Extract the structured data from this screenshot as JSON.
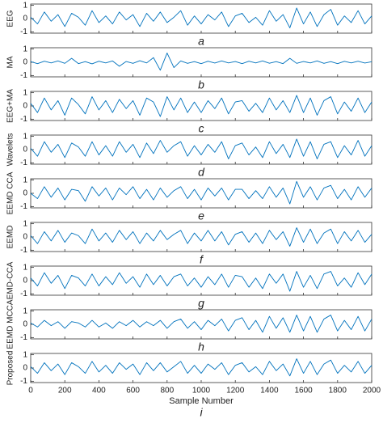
{
  "chart_data": {
    "type": "line",
    "xlabel": "Sample Number",
    "xlim": [
      0,
      2000
    ],
    "xticks": [
      0,
      200,
      400,
      600,
      800,
      1000,
      1200,
      1400,
      1600,
      1800,
      2000
    ],
    "ylim": [
      -1.1,
      1.1
    ],
    "yticks": [
      -1,
      0,
      1
    ],
    "color": "#0072bd",
    "x": [
      0,
      40,
      80,
      120,
      160,
      200,
      240,
      280,
      320,
      360,
      400,
      440,
      480,
      520,
      560,
      600,
      640,
      680,
      720,
      760,
      800,
      840,
      880,
      920,
      960,
      1000,
      1040,
      1080,
      1120,
      1160,
      1200,
      1240,
      1280,
      1320,
      1360,
      1400,
      1440,
      1480,
      1520,
      1560,
      1600,
      1640,
      1680,
      1720,
      1760,
      1800,
      1840,
      1880,
      1920,
      1960,
      2000
    ],
    "series": [
      {
        "name": "EEG",
        "label": "a",
        "values": [
          0.1,
          -0.4,
          0.5,
          -0.2,
          0.3,
          -0.6,
          0.4,
          0.1,
          -0.5,
          0.6,
          -0.3,
          0.2,
          -0.4,
          0.5,
          -0.1,
          0.3,
          -0.6,
          0.4,
          -0.2,
          0.5,
          -0.3,
          0.1,
          0.6,
          -0.5,
          0.2,
          -0.4,
          0.3,
          -0.1,
          0.5,
          -0.6,
          0.2,
          0.4,
          -0.3,
          0.1,
          -0.5,
          0.6,
          -0.2,
          0.3,
          -0.7,
          0.8,
          -0.4,
          0.5,
          -0.6,
          0.3,
          0.7,
          -0.5,
          0.2,
          -0.3,
          0.6,
          -0.4,
          0.2
        ]
      },
      {
        "name": "MA",
        "label": "b",
        "values": [
          0.05,
          -0.1,
          0.08,
          -0.05,
          0.1,
          -0.08,
          0.3,
          -0.1,
          0.05,
          -0.12,
          0.08,
          -0.05,
          0.1,
          -0.3,
          0.06,
          -0.08,
          0.12,
          -0.05,
          0.35,
          -0.6,
          0.7,
          -0.4,
          0.1,
          -0.08,
          0.05,
          -0.1,
          0.08,
          -0.06,
          0.1,
          -0.05,
          0.06,
          -0.1,
          0.08,
          -0.05,
          0.1,
          -0.07,
          0.05,
          -0.1,
          0.3,
          -0.08,
          0.06,
          -0.05,
          0.1,
          -0.08,
          0.05,
          -0.1,
          0.07,
          -0.05,
          0.08,
          -0.06,
          0.04
        ]
      },
      {
        "name": "EEG+MA",
        "label": "c",
        "values": [
          0.2,
          -0.5,
          0.6,
          -0.3,
          0.4,
          -0.7,
          0.6,
          0.1,
          -0.6,
          0.7,
          -0.3,
          0.4,
          -0.5,
          0.5,
          -0.2,
          0.4,
          -0.7,
          0.6,
          0.3,
          -0.8,
          0.7,
          -0.3,
          0.6,
          -0.5,
          0.3,
          -0.5,
          0.4,
          -0.2,
          0.6,
          -0.6,
          0.3,
          0.4,
          -0.4,
          0.2,
          -0.5,
          0.6,
          -0.3,
          0.4,
          -0.5,
          0.8,
          -0.5,
          0.6,
          -0.7,
          0.4,
          0.7,
          -0.6,
          0.3,
          -0.4,
          0.6,
          -0.5,
          0.3
        ]
      },
      {
        "name": "Wavelets",
        "label": "d",
        "values": [
          0.1,
          -0.5,
          0.6,
          -0.2,
          0.4,
          -0.6,
          0.5,
          0.2,
          -0.5,
          0.6,
          -0.4,
          0.3,
          -0.5,
          0.6,
          -0.2,
          0.4,
          -0.6,
          0.5,
          -0.3,
          0.7,
          -0.2,
          0.3,
          0.6,
          -0.5,
          0.3,
          -0.4,
          0.4,
          -0.2,
          0.6,
          -0.7,
          0.3,
          0.5,
          -0.4,
          0.2,
          -0.6,
          0.6,
          -0.3,
          0.4,
          -0.6,
          0.8,
          -0.5,
          0.6,
          -0.7,
          0.4,
          0.6,
          -0.6,
          0.3,
          -0.4,
          0.7,
          -0.5,
          0.3
        ]
      },
      {
        "name": "EEMD CCA",
        "label": "e",
        "values": [
          0.0,
          -0.4,
          0.5,
          -0.3,
          0.4,
          -0.5,
          0.3,
          0.2,
          -0.6,
          0.5,
          -0.2,
          0.4,
          -0.5,
          0.4,
          -0.1,
          0.5,
          -0.4,
          0.3,
          -0.5,
          0.4,
          -0.3,
          0.2,
          0.5,
          -0.4,
          0.3,
          -0.5,
          0.4,
          -0.2,
          0.4,
          -0.5,
          0.3,
          0.3,
          -0.4,
          0.2,
          -0.4,
          0.5,
          -0.3,
          0.4,
          -0.8,
          0.9,
          -0.3,
          0.5,
          -0.5,
          0.4,
          0.6,
          -0.4,
          0.3,
          -0.5,
          0.5,
          -0.3,
          0.4
        ]
      },
      {
        "name": "EEMD",
        "label": "f",
        "values": [
          0.1,
          -0.5,
          0.4,
          -0.3,
          0.5,
          -0.4,
          0.3,
          0.1,
          -0.5,
          0.6,
          -0.3,
          0.3,
          -0.4,
          0.5,
          -0.2,
          0.4,
          -0.5,
          0.3,
          -0.3,
          0.5,
          -0.2,
          0.2,
          0.5,
          -0.5,
          0.3,
          -0.3,
          0.5,
          -0.3,
          0.4,
          -0.6,
          0.2,
          0.4,
          -0.4,
          0.3,
          -0.5,
          0.5,
          -0.2,
          0.4,
          -0.7,
          0.7,
          -0.4,
          0.6,
          -0.5,
          0.3,
          0.6,
          -0.5,
          0.4,
          -0.3,
          0.5,
          -0.4,
          0.2
        ]
      },
      {
        "name": "EMD-CCA",
        "label": "g",
        "values": [
          0.2,
          -0.4,
          0.6,
          -0.2,
          0.4,
          -0.6,
          0.4,
          0.2,
          -0.4,
          0.5,
          -0.4,
          0.3,
          -0.3,
          0.6,
          -0.2,
          0.3,
          -0.5,
          0.5,
          -0.3,
          0.4,
          -0.4,
          0.3,
          0.5,
          -0.4,
          0.2,
          -0.5,
          0.3,
          -0.3,
          0.5,
          -0.5,
          0.4,
          0.3,
          -0.5,
          0.2,
          -0.6,
          0.5,
          -0.2,
          0.5,
          -0.8,
          0.7,
          -0.5,
          0.4,
          -0.6,
          0.5,
          0.7,
          -0.4,
          0.2,
          -0.5,
          0.6,
          -0.3,
          0.5
        ]
      },
      {
        "name": "EEMD MCCA",
        "label": "h",
        "values": [
          0.1,
          -0.2,
          0.3,
          -0.1,
          0.2,
          -0.3,
          0.2,
          0.1,
          -0.2,
          0.3,
          -0.2,
          0.1,
          -0.3,
          0.2,
          -0.1,
          0.3,
          -0.2,
          0.2,
          -0.1,
          0.3,
          -0.3,
          0.2,
          0.4,
          -0.3,
          0.2,
          -0.4,
          0.3,
          -0.1,
          0.4,
          -0.5,
          0.3,
          0.5,
          -0.4,
          0.3,
          -0.6,
          0.6,
          -0.3,
          0.5,
          -0.6,
          0.7,
          -0.5,
          0.6,
          -0.6,
          0.4,
          0.7,
          -0.5,
          0.3,
          -0.4,
          0.6,
          -0.5,
          0.4
        ]
      },
      {
        "name": "Proposed",
        "label": "i",
        "values": [
          0.1,
          -0.4,
          0.4,
          -0.2,
          0.3,
          -0.5,
          0.4,
          0.1,
          -0.4,
          0.5,
          -0.3,
          0.2,
          -0.4,
          0.4,
          -0.1,
          0.3,
          -0.5,
          0.4,
          -0.2,
          0.4,
          -0.3,
          0.1,
          0.5,
          -0.4,
          0.2,
          -0.4,
          0.3,
          -0.1,
          0.4,
          -0.5,
          0.2,
          0.4,
          -0.3,
          0.1,
          -0.5,
          0.5,
          -0.2,
          0.3,
          -0.6,
          0.7,
          -0.4,
          0.5,
          -0.5,
          0.3,
          0.6,
          -0.4,
          0.2,
          -0.3,
          0.5,
          -0.4,
          0.2
        ]
      }
    ]
  }
}
